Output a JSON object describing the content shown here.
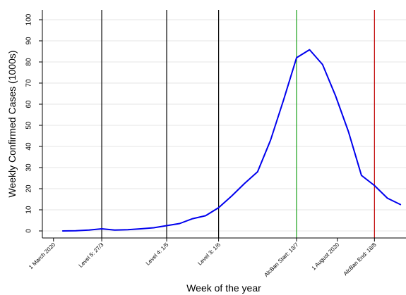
{
  "chart_data": {
    "type": "line",
    "title": "",
    "xlabel": "Week of the year",
    "ylabel": "Weekly Confirmed Cases (1000s)",
    "ylim": [
      0,
      100
    ],
    "yticks": [
      0,
      10,
      20,
      30,
      40,
      50,
      60,
      70,
      80,
      90,
      100
    ],
    "grid": "horizontal",
    "legend": "none",
    "xlim": [
      "2020-02-24",
      "2020-09-07"
    ],
    "series": [
      {
        "color": "#0000ee",
        "points": [
          {
            "date": "2020-03-06",
            "value": 0.0
          },
          {
            "date": "2020-03-13",
            "value": 0.1
          },
          {
            "date": "2020-03-20",
            "value": 0.4
          },
          {
            "date": "2020-03-27",
            "value": 1.0
          },
          {
            "date": "2020-04-03",
            "value": 0.4
          },
          {
            "date": "2020-04-10",
            "value": 0.6
          },
          {
            "date": "2020-04-17",
            "value": 1.0
          },
          {
            "date": "2020-04-24",
            "value": 1.5
          },
          {
            "date": "2020-05-01",
            "value": 2.5
          },
          {
            "date": "2020-05-08",
            "value": 3.5
          },
          {
            "date": "2020-05-15",
            "value": 5.8
          },
          {
            "date": "2020-05-22",
            "value": 7.2
          },
          {
            "date": "2020-05-29",
            "value": 11.0
          },
          {
            "date": "2020-06-05",
            "value": 16.5
          },
          {
            "date": "2020-06-12",
            "value": 22.5
          },
          {
            "date": "2020-06-19",
            "value": 28.0
          },
          {
            "date": "2020-06-26",
            "value": 43.0
          },
          {
            "date": "2020-07-03",
            "value": 62.0
          },
          {
            "date": "2020-07-10",
            "value": 82.0
          },
          {
            "date": "2020-07-17",
            "value": 85.8
          },
          {
            "date": "2020-07-24",
            "value": 78.8
          },
          {
            "date": "2020-07-31",
            "value": 64.0
          },
          {
            "date": "2020-08-07",
            "value": 47.0
          },
          {
            "date": "2020-08-14",
            "value": 26.3
          },
          {
            "date": "2020-08-21",
            "value": 21.5
          },
          {
            "date": "2020-08-28",
            "value": 15.5
          },
          {
            "date": "2020-09-04",
            "value": 12.5
          }
        ]
      }
    ],
    "vlines": [
      {
        "date": "2020-03-27",
        "color": "#000000"
      },
      {
        "date": "2020-05-01",
        "color": "#000000"
      },
      {
        "date": "2020-05-29",
        "color": "#000000"
      },
      {
        "date": "2020-07-10",
        "color": "#1aa01a"
      },
      {
        "date": "2020-08-21",
        "color": "#c00000"
      }
    ],
    "xticks": [
      {
        "date": "2020-03-01",
        "label": "1 March 2020"
      },
      {
        "date": "2020-03-27",
        "label": "Level 5: 27/3"
      },
      {
        "date": "2020-05-01",
        "label": "Level 4: 1/5"
      },
      {
        "date": "2020-05-29",
        "label": "Level 3: 1/6"
      },
      {
        "date": "2020-07-10",
        "label": "AlcBan Start: 13/7"
      },
      {
        "date": "2020-08-01",
        "label": "1 August 2020"
      },
      {
        "date": "2020-08-21",
        "label": "AlcBan End: 18/8"
      }
    ]
  }
}
